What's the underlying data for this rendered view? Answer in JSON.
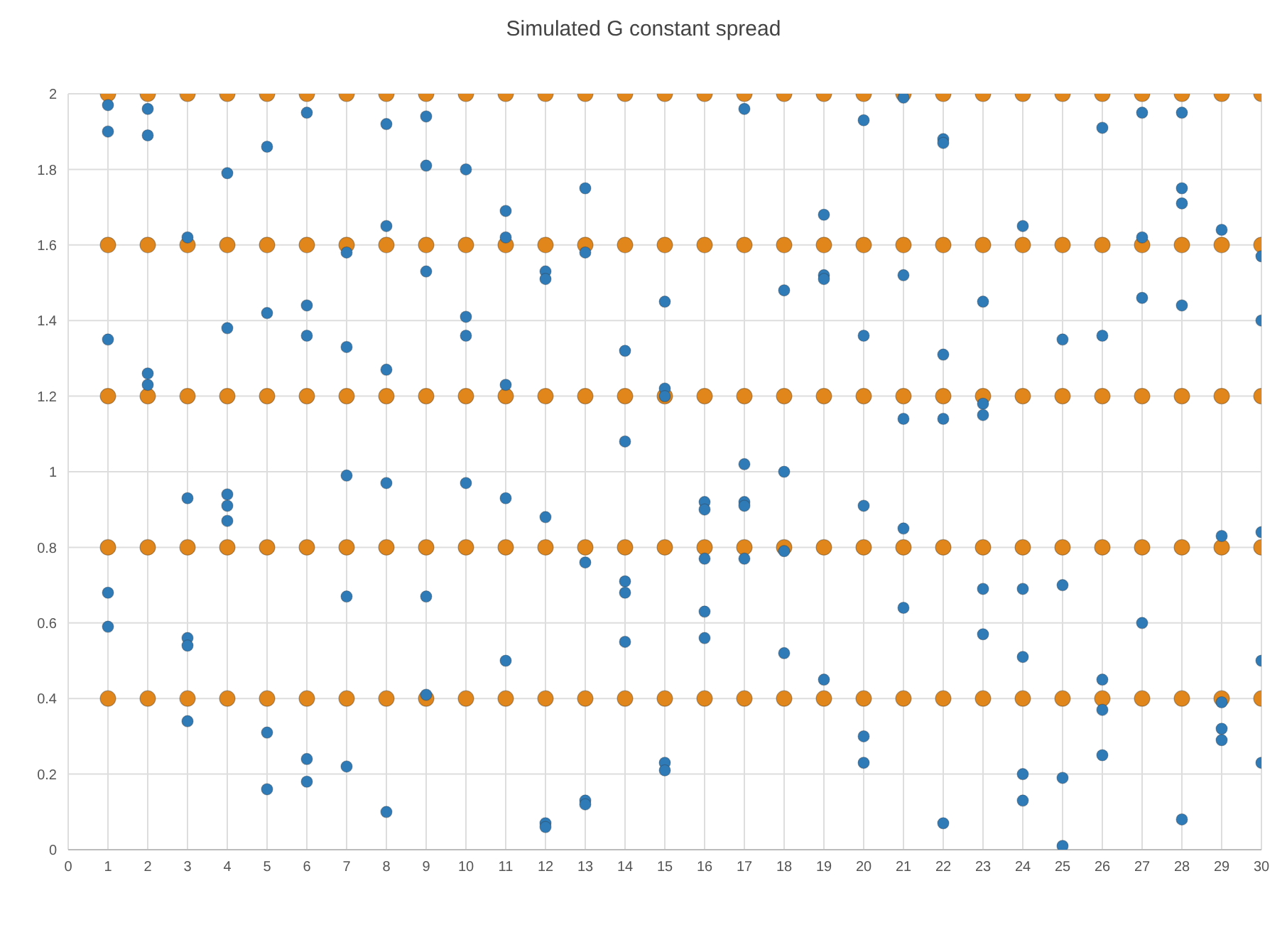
{
  "chart_data": {
    "type": "scatter",
    "title": "Simulated G constant spread",
    "xlim": [
      0,
      30
    ],
    "xticks": [
      0,
      1,
      2,
      3,
      4,
      5,
      6,
      7,
      8,
      9,
      10,
      11,
      12,
      13,
      14,
      15,
      16,
      17,
      18,
      19,
      20,
      21,
      22,
      23,
      24,
      25,
      26,
      27,
      28,
      29,
      30
    ],
    "ylim": [
      0,
      2
    ],
    "yticks": [
      0,
      0.2,
      0.4,
      0.6,
      0.8,
      1,
      1.2,
      1.4,
      1.6,
      1.8,
      2
    ],
    "grid": true,
    "legend": false,
    "marker": "circle",
    "series": [
      {
        "color": "#e0861a",
        "x": [
          1,
          2,
          3,
          4,
          5,
          6,
          7,
          8,
          9,
          10,
          11,
          12,
          13,
          14,
          15,
          16,
          17,
          18,
          19,
          20,
          21,
          22,
          23,
          24,
          25,
          26,
          27,
          28,
          29,
          30,
          1,
          2,
          3,
          4,
          5,
          6,
          7,
          8,
          9,
          10,
          11,
          12,
          13,
          14,
          15,
          16,
          17,
          18,
          19,
          20,
          21,
          22,
          23,
          24,
          25,
          26,
          27,
          28,
          29,
          30,
          1,
          2,
          3,
          4,
          5,
          6,
          7,
          8,
          9,
          10,
          11,
          12,
          13,
          14,
          15,
          16,
          17,
          18,
          19,
          20,
          21,
          22,
          23,
          24,
          25,
          26,
          27,
          28,
          29,
          30,
          1,
          2,
          3,
          4,
          5,
          6,
          7,
          8,
          9,
          10,
          11,
          12,
          13,
          14,
          15,
          16,
          17,
          18,
          19,
          20,
          21,
          22,
          23,
          24,
          25,
          26,
          27,
          28,
          29,
          30,
          1,
          2,
          3,
          4,
          5,
          6,
          7,
          8,
          9,
          10,
          11,
          12,
          13,
          14,
          15,
          16,
          17,
          18,
          19,
          20,
          21,
          22,
          23,
          24,
          25,
          26,
          27,
          28,
          29,
          30
        ],
        "values": [
          0.4,
          0.4,
          0.4,
          0.4,
          0.4,
          0.4,
          0.4,
          0.4,
          0.4,
          0.4,
          0.4,
          0.4,
          0.4,
          0.4,
          0.4,
          0.4,
          0.4,
          0.4,
          0.4,
          0.4,
          0.4,
          0.4,
          0.4,
          0.4,
          0.4,
          0.4,
          0.4,
          0.4,
          0.4,
          0.4,
          0.8,
          0.8,
          0.8,
          0.8,
          0.8,
          0.8,
          0.8,
          0.8,
          0.8,
          0.8,
          0.8,
          0.8,
          0.8,
          0.8,
          0.8,
          0.8,
          0.8,
          0.8,
          0.8,
          0.8,
          0.8,
          0.8,
          0.8,
          0.8,
          0.8,
          0.8,
          0.8,
          0.8,
          0.8,
          0.8,
          1.2,
          1.2,
          1.2,
          1.2,
          1.2,
          1.2,
          1.2,
          1.2,
          1.2,
          1.2,
          1.2,
          1.2,
          1.2,
          1.2,
          1.2,
          1.2,
          1.2,
          1.2,
          1.2,
          1.2,
          1.2,
          1.2,
          1.2,
          1.2,
          1.2,
          1.2,
          1.2,
          1.2,
          1.2,
          1.2,
          1.6,
          1.6,
          1.6,
          1.6,
          1.6,
          1.6,
          1.6,
          1.6,
          1.6,
          1.6,
          1.6,
          1.6,
          1.6,
          1.6,
          1.6,
          1.6,
          1.6,
          1.6,
          1.6,
          1.6,
          1.6,
          1.6,
          1.6,
          1.6,
          1.6,
          1.6,
          1.6,
          1.6,
          1.6,
          1.6,
          2,
          2,
          2,
          2,
          2,
          2,
          2,
          2,
          2,
          2,
          2,
          2,
          2,
          2,
          2,
          2,
          2,
          2,
          2,
          2,
          2,
          2,
          2,
          2,
          2,
          2,
          2,
          2,
          2,
          2
        ]
      },
      {
        "color": "#2f7bb8",
        "x": [
          1,
          1,
          1,
          1,
          1,
          2,
          2,
          2,
          2,
          3,
          3,
          3,
          3,
          3,
          4,
          4,
          4,
          4,
          4,
          5,
          5,
          5,
          5,
          6,
          6,
          6,
          6,
          6,
          7,
          7,
          7,
          7,
          7,
          8,
          8,
          8,
          8,
          8,
          9,
          9,
          9,
          9,
          9,
          10,
          10,
          10,
          10,
          11,
          11,
          11,
          11,
          11,
          12,
          12,
          12,
          12,
          12,
          13,
          13,
          13,
          13,
          13,
          14,
          14,
          14,
          14,
          14,
          15,
          15,
          15,
          15,
          15,
          16,
          16,
          16,
          16,
          16,
          17,
          17,
          17,
          17,
          17,
          18,
          18,
          18,
          18,
          19,
          19,
          19,
          19,
          20,
          20,
          20,
          20,
          20,
          21,
          21,
          21,
          21,
          21,
          22,
          22,
          22,
          22,
          22,
          23,
          23,
          23,
          23,
          23,
          24,
          24,
          24,
          24,
          24,
          25,
          25,
          25,
          25,
          26,
          26,
          26,
          26,
          26,
          27,
          27,
          27,
          27,
          28,
          28,
          28,
          28,
          28,
          29,
          29,
          29,
          29,
          29,
          30,
          30,
          30,
          30,
          30
        ],
        "values": [
          1.97,
          1.9,
          1.35,
          0.68,
          0.59,
          1.96,
          1.89,
          1.26,
          1.23,
          1.62,
          0.93,
          0.56,
          0.54,
          0.34,
          1.79,
          1.38,
          0.94,
          0.91,
          0.87,
          1.86,
          1.42,
          0.31,
          0.16,
          1.95,
          1.44,
          1.36,
          0.24,
          0.18,
          1.58,
          1.33,
          0.99,
          0.67,
          0.22,
          1.92,
          1.65,
          1.27,
          0.97,
          0.1,
          1.94,
          1.81,
          1.53,
          0.67,
          0.41,
          1.8,
          1.41,
          1.36,
          0.97,
          1.69,
          1.62,
          1.23,
          0.93,
          0.5,
          1.53,
          1.51,
          0.88,
          0.07,
          0.06,
          1.75,
          1.58,
          0.76,
          0.13,
          0.12,
          1.32,
          1.08,
          0.71,
          0.68,
          0.55,
          1.45,
          1.22,
          1.2,
          0.23,
          0.21,
          0.92,
          0.9,
          0.77,
          0.63,
          0.56,
          1.96,
          1.02,
          0.92,
          0.91,
          0.77,
          1.48,
          1,
          0.79,
          0.52,
          1.68,
          1.52,
          1.51,
          0.45,
          1.93,
          1.36,
          0.91,
          0.3,
          0.23,
          1.99,
          1.52,
          1.14,
          0.85,
          0.64,
          1.88,
          1.87,
          1.31,
          1.14,
          0.07,
          1.45,
          1.18,
          1.15,
          0.69,
          0.57,
          1.65,
          0.69,
          0.51,
          0.2,
          0.13,
          1.35,
          0.7,
          0.19,
          0.01,
          1.91,
          1.36,
          0.45,
          0.37,
          0.25,
          1.95,
          1.62,
          1.46,
          0.6,
          1.95,
          1.75,
          1.71,
          1.44,
          0.08,
          1.64,
          0.83,
          0.39,
          0.32,
          0.29,
          1.57,
          1.4,
          0.84,
          0.5,
          0.23
        ]
      }
    ]
  }
}
